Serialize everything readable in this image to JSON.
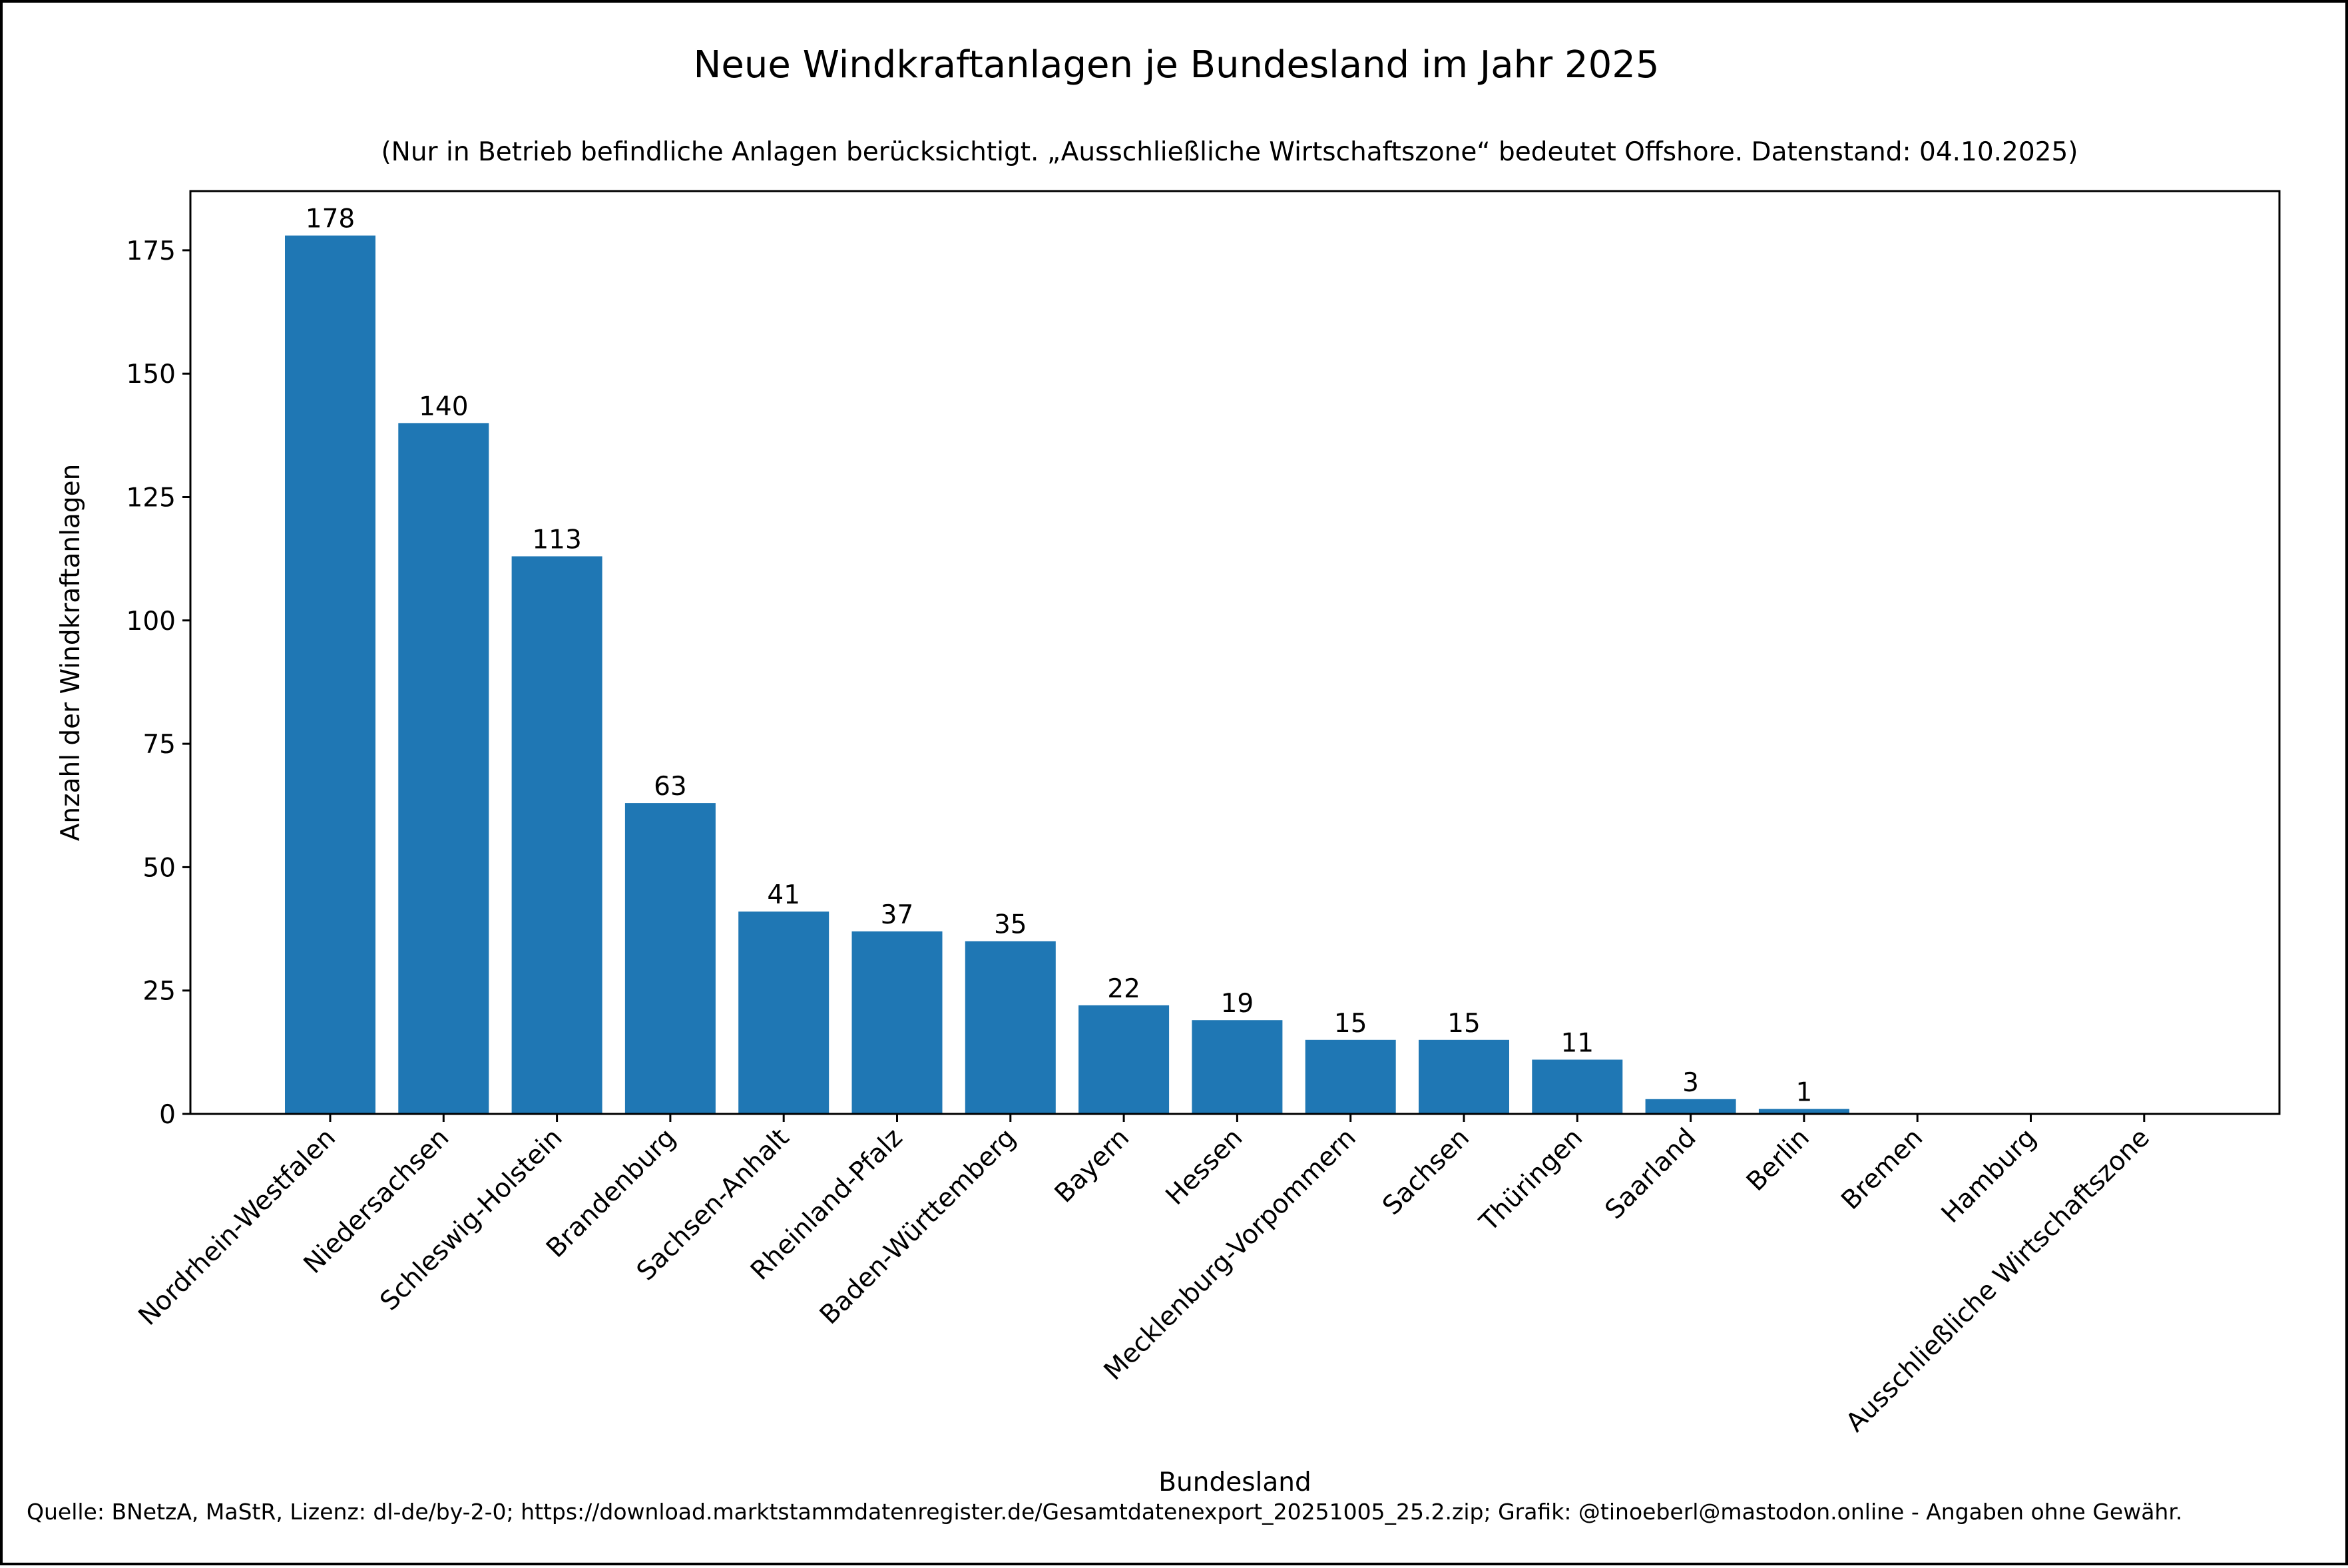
{
  "chart_data": {
    "type": "bar",
    "title": "Neue Windkraftanlagen je Bundesland im Jahr 2025",
    "subtitle": "(Nur in Betrieb befindliche Anlagen berücksichtigt. „Ausschließliche Wirtschaftszone“ bedeutet Offshore. Datenstand: 04.10.2025)",
    "xlabel": "Bundesland",
    "ylabel": "Anzahl der Windkraftanlagen",
    "categories": [
      "Nordrhein-Westfalen",
      "Niedersachsen",
      "Schleswig-Holstein",
      "Brandenburg",
      "Sachsen-Anhalt",
      "Rheinland-Pfalz",
      "Baden-Württemberg",
      "Bayern",
      "Hessen",
      "Mecklenburg-Vorpommern",
      "Sachsen",
      "Thüringen",
      "Saarland",
      "Berlin",
      "Bremen",
      "Hamburg",
      "Ausschließliche Wirtschaftszone"
    ],
    "values": [
      178,
      140,
      113,
      63,
      41,
      37,
      35,
      22,
      19,
      15,
      15,
      11,
      3,
      1,
      0,
      0,
      0
    ],
    "data_labels": [
      "178",
      "140",
      "113",
      "63",
      "41",
      "37",
      "35",
      "22",
      "19",
      "15",
      "15",
      "11",
      "3",
      "1",
      "",
      "",
      ""
    ],
    "ylim": [
      0,
      187
    ],
    "yticks": [
      0,
      25,
      50,
      75,
      100,
      125,
      150,
      175
    ],
    "ytick_labels": [
      "0",
      "25",
      "50",
      "75",
      "100",
      "125",
      "150",
      "175"
    ],
    "bar_color": "#1f77b4",
    "grid": false,
    "footnote": "Quelle: BNetzA, MaStR, Lizenz: dl-de/by-2-0; https://download.marktstammdatenregister.de/Gesamtdatenexport_20251005_25.2.zip; Grafik: @tinoeberl@mastodon.online - Angaben ohne Gewähr."
  }
}
